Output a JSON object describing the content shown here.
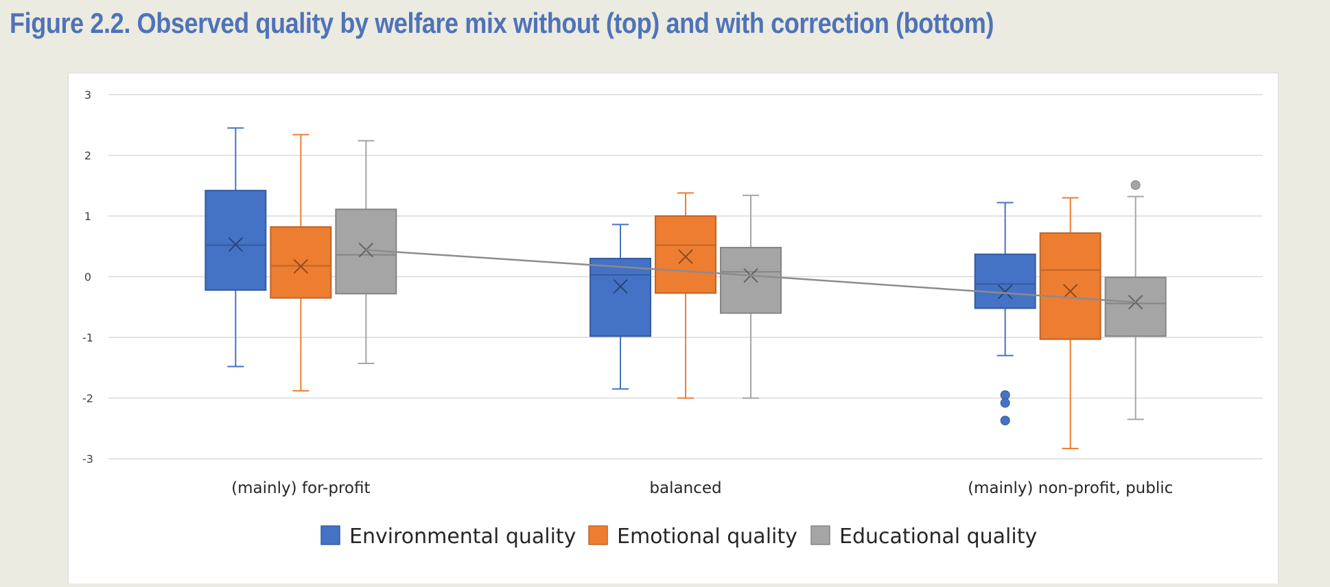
{
  "figure_title": "Figure 2.2. Observed quality by welfare mix without (top) and with correction (bottom)",
  "chart_data": {
    "type": "box",
    "ylim": [
      -3,
      3
    ],
    "yticks": [
      3,
      2,
      1,
      0,
      -1,
      -2,
      -3
    ],
    "grid": true,
    "legend_position": "bottom",
    "categories": [
      "(mainly) for-profit",
      "balanced",
      "(mainly) non-profit, public"
    ],
    "series": [
      {
        "name": "Environmental quality",
        "color": "#4472c4",
        "boxes": [
          {
            "min": -1.48,
            "q1": -0.22,
            "median": 0.52,
            "q3": 1.42,
            "max": 2.45,
            "mean": 0.53,
            "outliers": []
          },
          {
            "min": -1.85,
            "q1": -0.98,
            "median": 0.03,
            "q3": 0.3,
            "max": 0.86,
            "mean": -0.16,
            "outliers": []
          },
          {
            "min": -1.3,
            "q1": -0.52,
            "median": -0.12,
            "q3": 0.37,
            "max": 1.22,
            "mean": -0.25,
            "outliers": [
              -1.95,
              -2.08,
              -2.37
            ]
          }
        ]
      },
      {
        "name": "Emotional quality",
        "color": "#ed7d31",
        "boxes": [
          {
            "min": -1.88,
            "q1": -0.35,
            "median": 0.18,
            "q3": 0.82,
            "max": 2.34,
            "mean": 0.17,
            "outliers": []
          },
          {
            "min": -2.0,
            "q1": -0.27,
            "median": 0.52,
            "q3": 1.0,
            "max": 1.38,
            "mean": 0.33,
            "outliers": []
          },
          {
            "min": -2.83,
            "q1": -1.03,
            "median": 0.11,
            "q3": 0.72,
            "max": 1.3,
            "mean": -0.24,
            "outliers": []
          }
        ]
      },
      {
        "name": "Educational quality",
        "color": "#a5a5a5",
        "boxes": [
          {
            "min": -1.43,
            "q1": -0.28,
            "median": 0.36,
            "q3": 1.11,
            "max": 2.24,
            "mean": 0.44,
            "outliers": []
          },
          {
            "min": -2.0,
            "q1": -0.6,
            "median": 0.08,
            "q3": 0.48,
            "max": 1.34,
            "mean": 0.02,
            "outliers": []
          },
          {
            "min": -2.35,
            "q1": -0.98,
            "median": -0.44,
            "q3": -0.01,
            "max": 1.32,
            "mean": -0.42,
            "outliers": [
              1.51
            ]
          }
        ]
      }
    ],
    "mean_line": {
      "series": "Educational quality",
      "color": "#8c8c8c"
    }
  }
}
